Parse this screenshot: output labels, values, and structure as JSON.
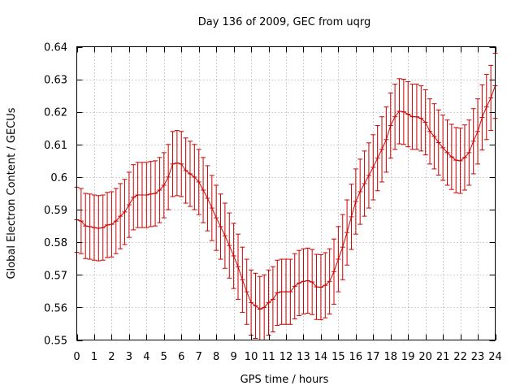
{
  "chart_data": {
    "type": "line",
    "title": "Day 136 of 2009, GEC from uqrg",
    "xlabel": "GPS time / hours",
    "ylabel": "Global Electron Content / GECUs",
    "xlim": [
      0,
      24
    ],
    "ylim": [
      0.55,
      0.64
    ],
    "xticks": [
      "0",
      "1",
      "2",
      "3",
      "4",
      "5",
      "6",
      "7",
      "8",
      "9",
      "10",
      "11",
      "12",
      "13",
      "14",
      "15",
      "16",
      "17",
      "18",
      "19",
      "20",
      "21",
      "22",
      "23",
      "24"
    ],
    "yticks": [
      "0.55",
      "0.56",
      "0.57",
      "0.58",
      "0.59",
      "0.6",
      "0.61",
      "0.62",
      "0.63",
      "0.64"
    ],
    "grid": true,
    "error_half_width": 0.01,
    "series": [
      {
        "color": "#cc0000",
        "x": [
          0,
          0.25,
          0.5,
          0.75,
          1,
          1.25,
          1.5,
          1.75,
          2,
          2.25,
          2.5,
          2.75,
          3,
          3.25,
          3.5,
          3.75,
          4,
          4.25,
          4.5,
          4.75,
          5,
          5.25,
          5.5,
          5.75,
          6,
          6.25,
          6.5,
          6.75,
          7,
          7.25,
          7.5,
          7.75,
          8,
          8.25,
          8.5,
          8.75,
          9,
          9.25,
          9.5,
          9.75,
          10,
          10.25,
          10.5,
          10.75,
          11,
          11.25,
          11.5,
          11.75,
          12,
          12.25,
          12.5,
          12.75,
          13,
          13.25,
          13.5,
          13.75,
          14,
          14.25,
          14.5,
          14.75,
          15,
          15.25,
          15.5,
          15.75,
          16,
          16.25,
          16.5,
          16.75,
          17,
          17.25,
          17.5,
          17.75,
          18,
          18.25,
          18.5,
          18.75,
          19,
          19.25,
          19.5,
          19.75,
          20,
          20.25,
          20.5,
          20.75,
          21,
          21.25,
          21.5,
          21.75,
          22,
          22.25,
          22.5,
          22.75,
          23,
          23.25,
          23.5,
          23.75,
          24
        ],
        "y": [
          0.5869,
          0.5865,
          0.585,
          0.5848,
          0.5845,
          0.5843,
          0.5845,
          0.5853,
          0.5855,
          0.5865,
          0.588,
          0.5893,
          0.5915,
          0.5938,
          0.5945,
          0.5945,
          0.5945,
          0.5948,
          0.595,
          0.596,
          0.5975,
          0.6,
          0.604,
          0.6043,
          0.604,
          0.602,
          0.601,
          0.6,
          0.5985,
          0.596,
          0.5935,
          0.5905,
          0.5875,
          0.5848,
          0.582,
          0.579,
          0.5758,
          0.5725,
          0.5685,
          0.5648,
          0.5615,
          0.5605,
          0.5595,
          0.56,
          0.5615,
          0.5625,
          0.5645,
          0.5648,
          0.5648,
          0.5648,
          0.5665,
          0.5675,
          0.568,
          0.5682,
          0.5678,
          0.5663,
          0.5662,
          0.5668,
          0.568,
          0.571,
          0.5748,
          0.5785,
          0.583,
          0.5878,
          0.5925,
          0.5955,
          0.598,
          0.6005,
          0.603,
          0.6058,
          0.6085,
          0.6115,
          0.6158,
          0.6185,
          0.6202,
          0.62,
          0.6193,
          0.6185,
          0.6185,
          0.618,
          0.6168,
          0.614,
          0.6125,
          0.6106,
          0.609,
          0.6075,
          0.6062,
          0.6052,
          0.605,
          0.606,
          0.6075,
          0.611,
          0.614,
          0.6183,
          0.6215,
          0.6243,
          0.628
        ]
      }
    ]
  }
}
